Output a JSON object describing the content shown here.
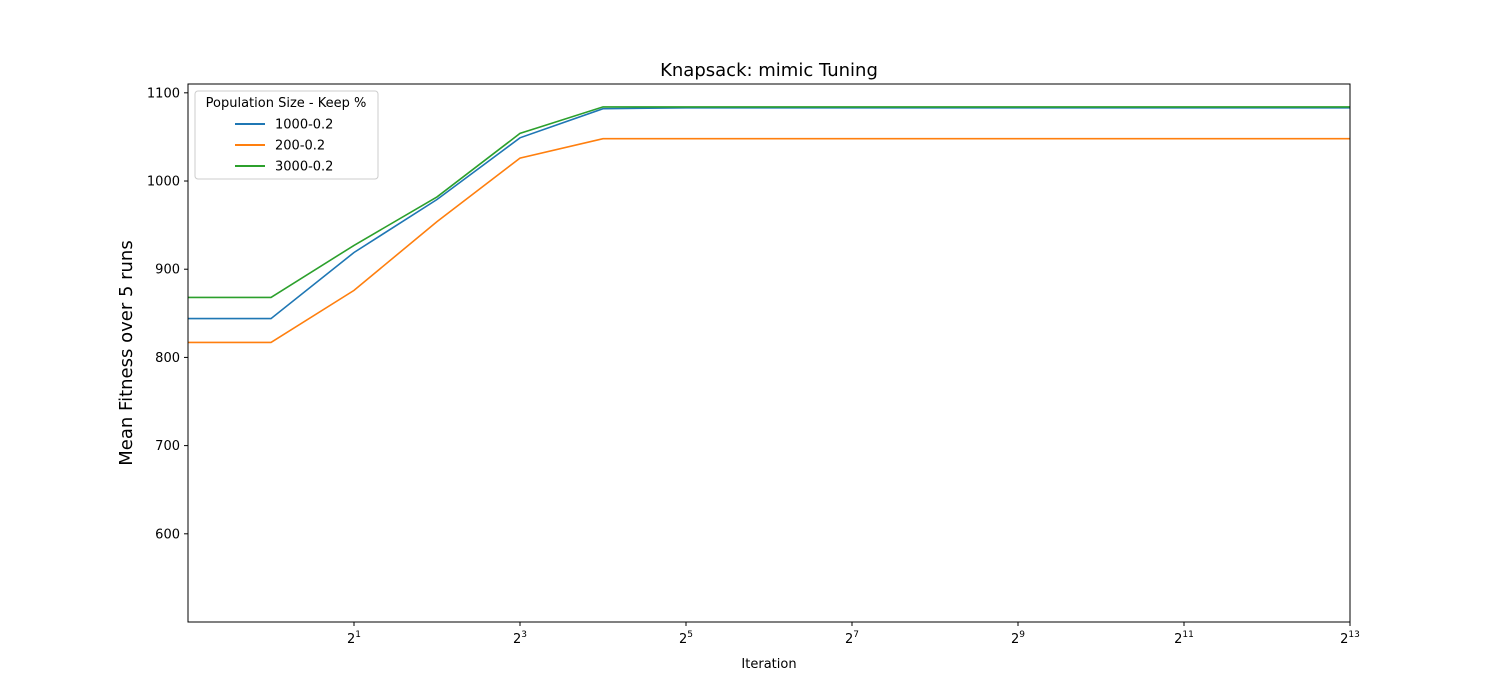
{
  "chart_data": {
    "type": "line",
    "title": "Knapsack: mimic Tuning",
    "xlabel": "Iteration",
    "ylabel": "Mean Fitness over 5 runs",
    "x_scale": "log2",
    "xlim": [
      0.5,
      8192
    ],
    "ylim": [
      500,
      1110
    ],
    "grid": false,
    "legend": {
      "title": "Population Size - Keep %",
      "placement": "top-left"
    },
    "x_ticks": [
      {
        "value": 2,
        "base": "2",
        "exp": "1"
      },
      {
        "value": 8,
        "base": "2",
        "exp": "3"
      },
      {
        "value": 32,
        "base": "2",
        "exp": "5"
      },
      {
        "value": 128,
        "base": "2",
        "exp": "7"
      },
      {
        "value": 512,
        "base": "2",
        "exp": "9"
      },
      {
        "value": 2048,
        "base": "2",
        "exp": "11"
      },
      {
        "value": 8192,
        "base": "2",
        "exp": "13"
      }
    ],
    "y_ticks": [
      "600",
      "700",
      "800",
      "900",
      "1000",
      "1100"
    ],
    "x": [
      0.5,
      1,
      2,
      4,
      8,
      16,
      32,
      64,
      128,
      256,
      512,
      1024,
      2048,
      4096,
      8192
    ],
    "series": [
      {
        "name": "1000-0.2",
        "color": "#1f77b4",
        "values": [
          844,
          844,
          919,
          979,
          1049,
          1082,
          1083,
          1083,
          1083,
          1083,
          1083,
          1083,
          1083,
          1083,
          1083
        ]
      },
      {
        "name": "200-0.2",
        "color": "#ff7f0e",
        "values": [
          817,
          817,
          876,
          954,
          1026,
          1048,
          1048,
          1048,
          1048,
          1048,
          1048,
          1048,
          1048,
          1048,
          1048
        ]
      },
      {
        "name": "3000-0.2",
        "color": "#2ca02c",
        "values": [
          868,
          868,
          927,
          982,
          1054,
          1084,
          1084,
          1084,
          1084,
          1084,
          1084,
          1084,
          1084,
          1084,
          1084
        ]
      }
    ]
  }
}
